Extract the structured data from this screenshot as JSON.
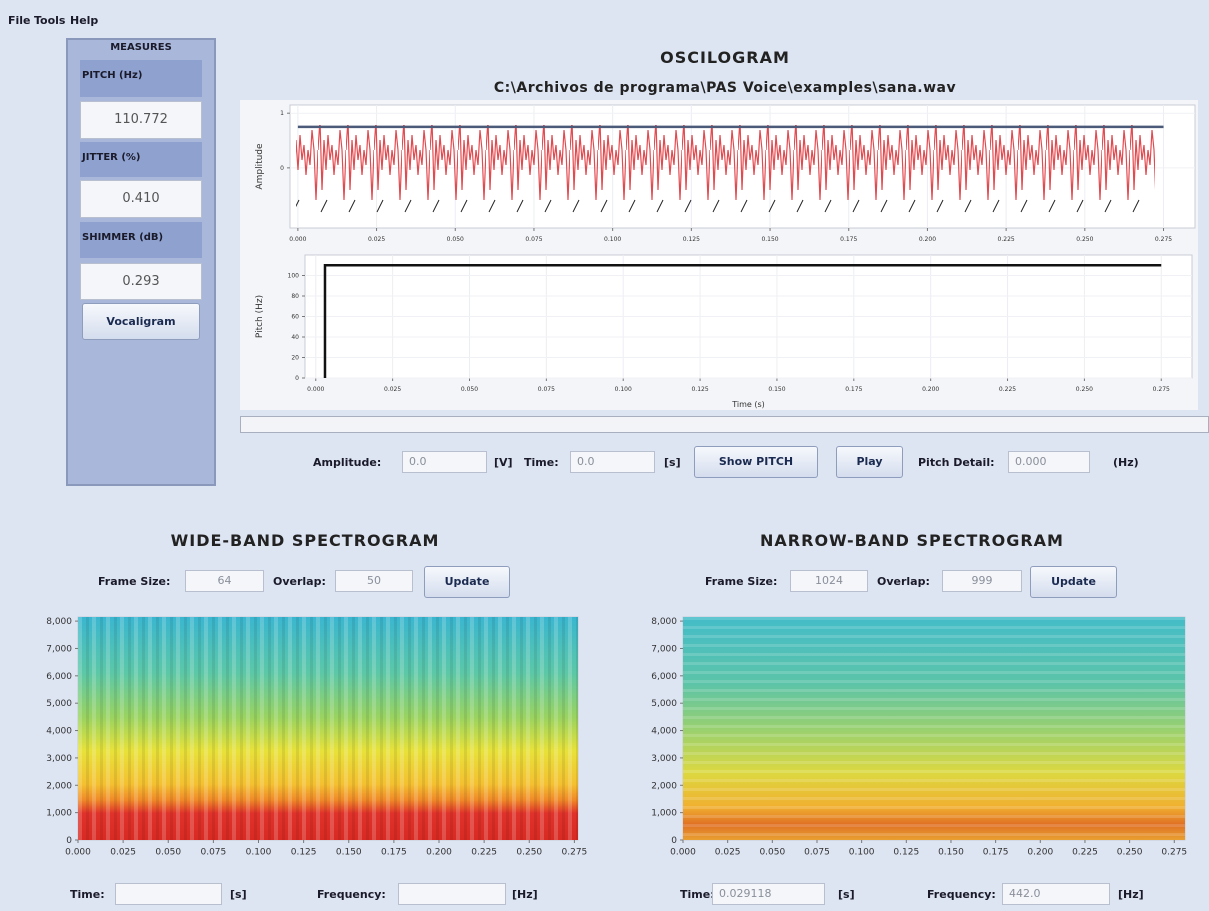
{
  "menu": [
    "File",
    "Tools",
    "Help"
  ],
  "measures": {
    "title": "MEASURES",
    "items": [
      {
        "label": "PITCH (Hz)",
        "value": "110.772"
      },
      {
        "label": "JITTER (%)",
        "value": "0.410"
      },
      {
        "label": "SHIMMER (dB)",
        "value": "0.293"
      }
    ],
    "button": "Vocaligram"
  },
  "oscilogram": {
    "title": "OSCILOGRAM",
    "file": "C:\\Archivos de programa\\PAS Voice\\examples\\sana.wav"
  },
  "controls": {
    "amplitude_label": "Amplitude:",
    "amplitude": "0.0",
    "amplitude_unit": "[V]",
    "time_label": "Time:",
    "time": "0.0",
    "time_unit": "[s]",
    "show_pitch": "Show PITCH",
    "play": "Play",
    "pitch_detail_label": "Pitch Detail:",
    "pitch_detail": "0.000",
    "pitch_detail_unit": "(Hz)"
  },
  "wideband": {
    "title": "WIDE-BAND SPECTROGRAM",
    "frame_label": "Frame Size:",
    "frame": "64",
    "overlap_label": "Overlap:",
    "overlap": "50",
    "update": "Update",
    "time_label": "Time:",
    "time_unit": "[s]",
    "freq_label": "Frequency:",
    "freq_unit": "[Hz]"
  },
  "narrowband": {
    "title": "NARROW-BAND SPECTROGRAM",
    "frame_label": "Frame Size:",
    "frame": "1024",
    "overlap_label": "Overlap:",
    "overlap": "999",
    "update": "Update",
    "time_label": "Time:",
    "time": "0.029118",
    "time_unit": "[s]",
    "freq_label": "Frequency:",
    "frequency": "442.0",
    "freq_unit": "[Hz]"
  },
  "chart_data": [
    {
      "type": "line",
      "y_label": "Amplitude",
      "xlim": [
        -0.0025,
        0.285
      ],
      "ylim": [
        -1.1,
        1.15
      ],
      "yticks": [
        0,
        1
      ],
      "grid": true,
      "xticks": [
        {
          "value": 0,
          "label": "0.000"
        },
        {
          "value": 0.025,
          "label": "0.025"
        },
        {
          "value": 0.05,
          "label": "0.050"
        },
        {
          "value": 0.075,
          "label": "0.075"
        },
        {
          "value": 0.1,
          "label": "0.100"
        },
        {
          "value": 0.125,
          "label": "0.125"
        },
        {
          "value": 0.15,
          "label": "0.150"
        },
        {
          "value": 0.175,
          "label": "0.175"
        },
        {
          "value": 0.2,
          "label": "0.200"
        },
        {
          "value": 0.225,
          "label": "0.225"
        },
        {
          "value": 0.25,
          "label": "0.250"
        },
        {
          "value": 0.275,
          "label": "0.275"
        }
      ],
      "series": [
        {
          "color": "#4a5a78",
          "x": [
            0,
            0.275
          ],
          "values": [
            0.75,
            0.75
          ]
        }
      ]
    },
    {
      "type": "line",
      "y_label": "Pitch (Hz)",
      "x_label": "Time (s)",
      "xlim": [
        -0.0035,
        0.285
      ],
      "ylim": [
        0,
        120
      ],
      "yticks": [
        0,
        20,
        40,
        60,
        80,
        100
      ],
      "grid": true,
      "xticks": [
        {
          "value": 0,
          "label": "0.000"
        },
        {
          "value": 0.025,
          "label": "0.025"
        },
        {
          "value": 0.05,
          "label": "0.050"
        },
        {
          "value": 0.075,
          "label": "0.075"
        },
        {
          "value": 0.1,
          "label": "0.100"
        },
        {
          "value": 0.125,
          "label": "0.125"
        },
        {
          "value": 0.15,
          "label": "0.150"
        },
        {
          "value": 0.175,
          "label": "0.175"
        },
        {
          "value": 0.2,
          "label": "0.200"
        },
        {
          "value": 0.225,
          "label": "0.225"
        },
        {
          "value": 0.25,
          "label": "0.250"
        },
        {
          "value": 0.275,
          "label": "0.275"
        }
      ],
      "series": [
        {
          "color": "#111111",
          "x": [
            0.003,
            0.003,
            0.275
          ],
          "values": [
            0,
            110,
            110
          ]
        }
      ]
    },
    {
      "type": "spectrogram",
      "xlim": [
        0,
        0.277
      ],
      "ylim": [
        0,
        8150
      ],
      "grid": false,
      "yticks": [
        0,
        {
          "value": 1000,
          "label": "1,000"
        },
        {
          "value": 2000,
          "label": "2,000"
        },
        {
          "value": 3000,
          "label": "3,000"
        },
        {
          "value": 4000,
          "label": "4,000"
        },
        {
          "value": 5000,
          "label": "5,000"
        },
        {
          "value": 6000,
          "label": "6,000"
        },
        {
          "value": 7000,
          "label": "7,000"
        },
        {
          "value": 8000,
          "label": "8,000"
        }
      ],
      "xticks": [
        {
          "value": 0,
          "label": "0.000"
        },
        {
          "value": 0.025,
          "label": "0.025"
        },
        {
          "value": 0.05,
          "label": "0.050"
        },
        {
          "value": 0.075,
          "label": "0.075"
        },
        {
          "value": 0.1,
          "label": "0.100"
        },
        {
          "value": 0.125,
          "label": "0.125"
        },
        {
          "value": 0.15,
          "label": "0.150"
        },
        {
          "value": 0.175,
          "label": "0.175"
        },
        {
          "value": 0.2,
          "label": "0.200"
        },
        {
          "value": 0.225,
          "label": "0.225"
        },
        {
          "value": 0.25,
          "label": "0.250"
        },
        {
          "value": 0.275,
          "label": "0.275"
        }
      ]
    },
    {
      "type": "spectrogram",
      "xlim": [
        0,
        0.281
      ],
      "ylim": [
        0,
        8150
      ],
      "grid": false,
      "yticks": [
        0,
        {
          "value": 1000,
          "label": "1,000"
        },
        {
          "value": 2000,
          "label": "2,000"
        },
        {
          "value": 3000,
          "label": "3,000"
        },
        {
          "value": 4000,
          "label": "4,000"
        },
        {
          "value": 5000,
          "label": "5,000"
        },
        {
          "value": 6000,
          "label": "6,000"
        },
        {
          "value": 7000,
          "label": "7,000"
        },
        {
          "value": 8000,
          "label": "8,000"
        }
      ],
      "xticks": [
        {
          "value": 0,
          "label": "0.000"
        },
        {
          "value": 0.025,
          "label": "0.025"
        },
        {
          "value": 0.05,
          "label": "0.050"
        },
        {
          "value": 0.075,
          "label": "0.075"
        },
        {
          "value": 0.1,
          "label": "0.100"
        },
        {
          "value": 0.125,
          "label": "0.125"
        },
        {
          "value": 0.15,
          "label": "0.150"
        },
        {
          "value": 0.175,
          "label": "0.175"
        },
        {
          "value": 0.2,
          "label": "0.200"
        },
        {
          "value": 0.225,
          "label": "0.225"
        },
        {
          "value": 0.25,
          "label": "0.250"
        },
        {
          "value": 0.275,
          "label": "0.275"
        }
      ]
    }
  ]
}
